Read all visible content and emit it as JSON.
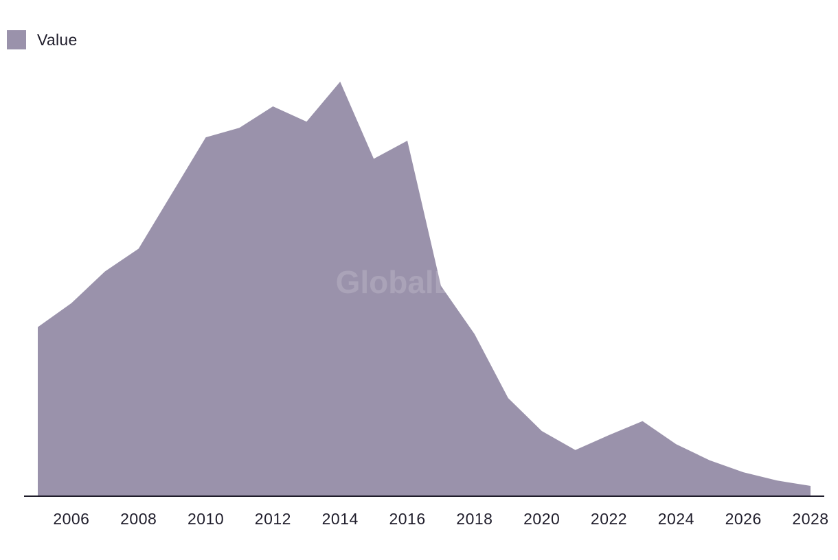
{
  "legend": {
    "label": "Value"
  },
  "watermark": "GlobalData",
  "colors": {
    "area": "#9a92ab",
    "axis": "#1f1d2b"
  },
  "chart_data": {
    "type": "area",
    "title": "",
    "xlabel": "",
    "ylabel": "",
    "ylim": [
      0,
      100
    ],
    "grid": false,
    "legend_position": "top-left",
    "x_ticks": [
      "2006",
      "2008",
      "2010",
      "2012",
      "2014",
      "2016",
      "2018",
      "2020",
      "2022",
      "2024",
      "2026",
      "2028"
    ],
    "series": [
      {
        "name": "Value",
        "x": [
          2005,
          2006,
          2007,
          2008,
          2009,
          2010,
          2011,
          2012,
          2013,
          2014,
          2015,
          2016,
          2017,
          2018,
          2019,
          2020,
          2021,
          2022,
          2023,
          2024,
          2025,
          2026,
          2027,
          2028
        ],
        "values": [
          41,
          46.8,
          54.5,
          60,
          73.5,
          87,
          89.3,
          94.5,
          90.8,
          100.5,
          81.8,
          86.2,
          51,
          39.3,
          23.8,
          15.8,
          11.2,
          14.8,
          18.2,
          12.6,
          8.7,
          5.8,
          3.8,
          2.5
        ]
      }
    ]
  }
}
